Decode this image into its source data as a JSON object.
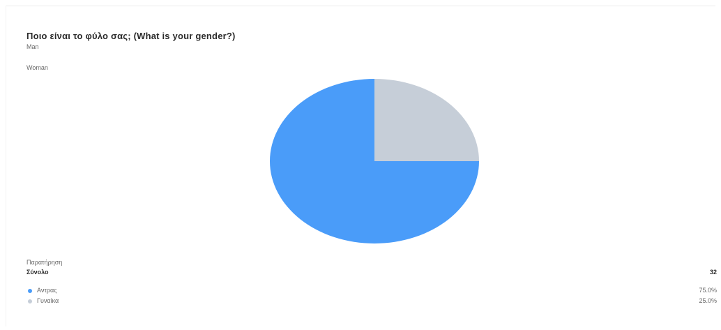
{
  "question": {
    "title": "Ποιο είναι το φύλο σας; (What is your gender?)",
    "options": [
      "Man",
      "Woman"
    ]
  },
  "summary": {
    "observation_label": "Παρατήρηση",
    "total_label": "Σύνολο",
    "total_value": "32",
    "rows": [
      {
        "label": "Αντρας",
        "value": "75.0%"
      },
      {
        "label": "Γυναίκα",
        "value": "25.0%"
      }
    ]
  },
  "colors": {
    "man": "#4a9cf9",
    "woman": "#c6ced8"
  },
  "chart_data": {
    "type": "pie",
    "categories": [
      "Αντρας",
      "Γυναίκα"
    ],
    "values": [
      75.0,
      25.0
    ],
    "colors": [
      "#4a9cf9",
      "#c6ced8"
    ],
    "title": "",
    "legend": "bottom-left"
  }
}
